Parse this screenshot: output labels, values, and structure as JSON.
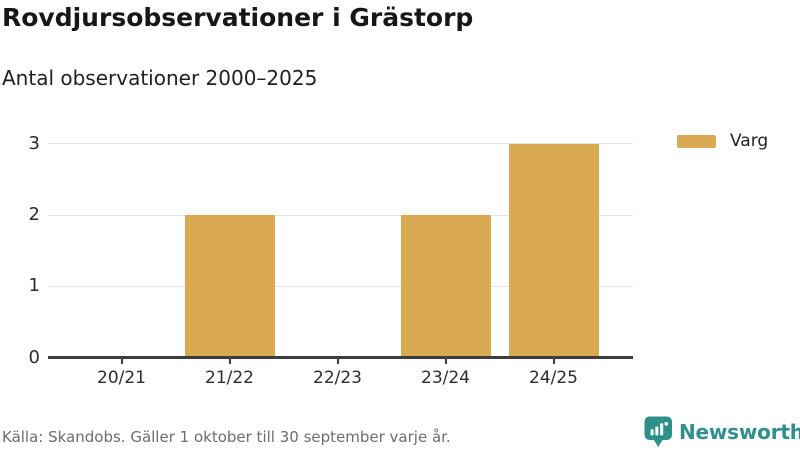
{
  "header": {
    "title": "Rovdjursobservationer i Grästorp",
    "subtitle": "Antal observationer 2000–2025"
  },
  "legend": {
    "items": [
      {
        "label": "Varg",
        "color": "#d9aa52"
      }
    ]
  },
  "chart_data": {
    "type": "bar",
    "title": "Rovdjursobservationer i Grästorp",
    "subtitle": "Antal observationer 2000–2025",
    "categories": [
      "20/21",
      "21/22",
      "22/23",
      "23/24",
      "24/25"
    ],
    "series": [
      {
        "name": "Varg",
        "color": "#d9aa52",
        "values": [
          0,
          2,
          0,
          2,
          3
        ]
      }
    ],
    "xlabel": "",
    "ylabel": "",
    "ylim": [
      0,
      3
    ],
    "yticks": [
      0,
      1,
      2,
      3
    ],
    "grid": true,
    "legend_position": "top-right"
  },
  "footer": {
    "source": "Källa: Skandobs. Gäller 1 oktober till 30 september varje år.",
    "brand": "Newsworthy"
  },
  "colors": {
    "bar": "#d9aa52",
    "brand_teal": "#2f908b",
    "grid": "#e5e5e5",
    "axis": "#3e3e3e"
  }
}
